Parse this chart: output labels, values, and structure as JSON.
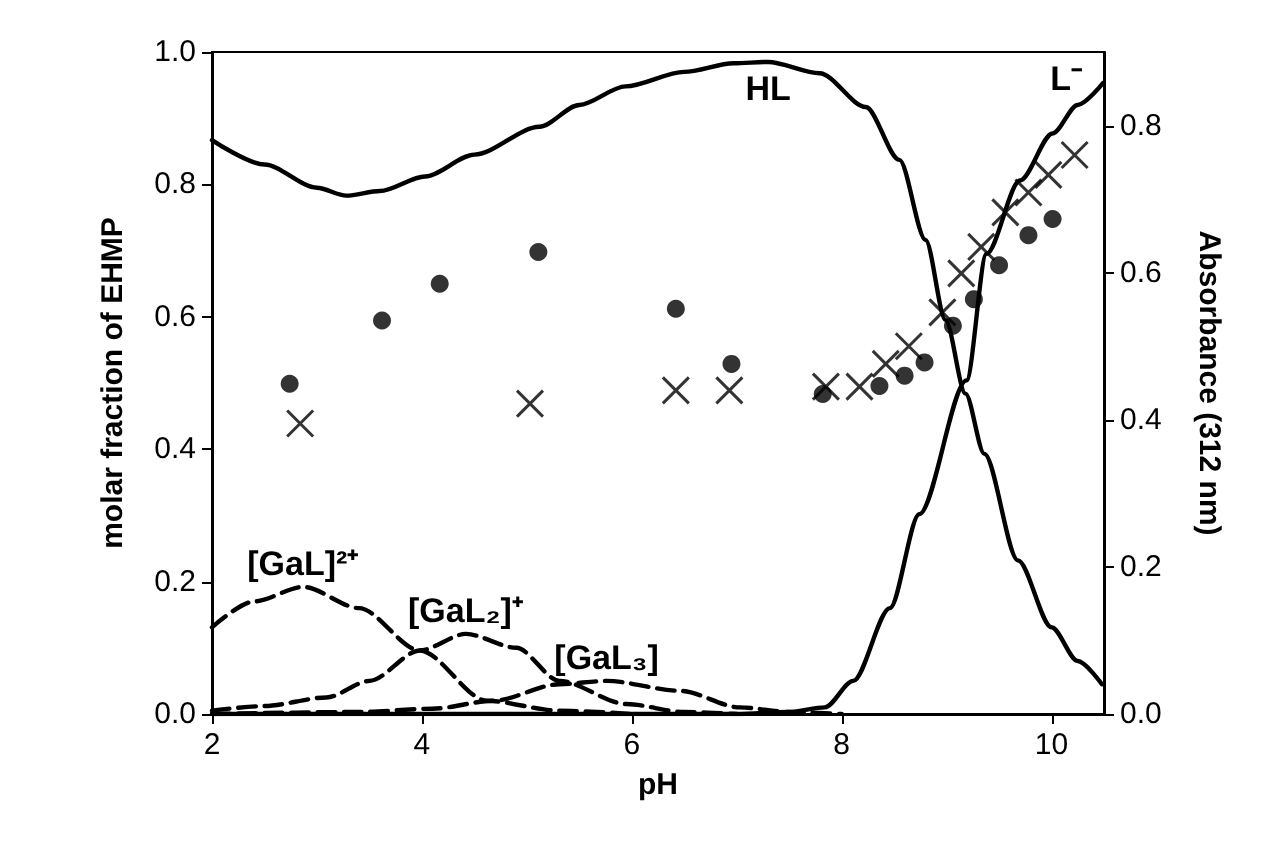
{
  "chart_data": {
    "type": "line",
    "xlabel": "pH",
    "ylabel": "molar fraction of EHMP",
    "y2label": "Absorbance (312 nm)",
    "xlim": [
      2,
      10.5
    ],
    "xticks": [
      2,
      4,
      6,
      8,
      10
    ],
    "ylim": [
      0,
      1
    ],
    "yticks": [
      {
        "value": 0,
        "label": "0.0"
      },
      {
        "value": 0.2,
        "label": "0.2"
      },
      {
        "value": 0.4,
        "label": "0.4"
      },
      {
        "value": 0.6,
        "label": "0.6"
      },
      {
        "value": 0.8,
        "label": "0.8"
      },
      {
        "value": 1,
        "label": "1.0"
      }
    ],
    "y2lim": [
      0,
      0.9
    ],
    "y2ticks": [
      {
        "value": 0,
        "label": "0.0"
      },
      {
        "value": 0.2,
        "label": "0.2"
      },
      {
        "value": 0.4,
        "label": "0.4"
      },
      {
        "value": 0.6,
        "label": "0.6"
      },
      {
        "value": 0.8,
        "label": "0.8"
      }
    ],
    "grid": false,
    "legend": false,
    "series": [
      {
        "name": "HL",
        "color": "#000000",
        "line_style": "solid",
        "marker": "none",
        "x": [
          2,
          2.5,
          3,
          3.28,
          3.6,
          4.03,
          4.5,
          5.12,
          5.5,
          5.94,
          6.5,
          6.97,
          7.3,
          7.79,
          8.23,
          8.55,
          8.8,
          8.99,
          9.18,
          9.36,
          9.68,
          10,
          10.25,
          10.48
        ],
        "values": [
          0.867,
          0.83,
          0.795,
          0.783,
          0.79,
          0.812,
          0.845,
          0.887,
          0.92,
          0.948,
          0.97,
          0.983,
          0.985,
          0.968,
          0.917,
          0.837,
          0.716,
          0.595,
          0.484,
          0.393,
          0.232,
          0.131,
          0.08,
          0.045
        ]
      },
      {
        "name": "L⁻",
        "color": "#000000",
        "line_style": "solid",
        "marker": "none",
        "x": [
          2,
          7,
          7.5,
          7.84,
          8.11,
          8.46,
          8.74,
          9.19,
          9.38,
          9.7,
          10.01,
          10.25,
          10.49
        ],
        "values": [
          0,
          0,
          0.003,
          0.01,
          0.05,
          0.16,
          0.302,
          0.504,
          0.695,
          0.806,
          0.877,
          0.92,
          0.953
        ]
      },
      {
        "name": "[GaL]²⁺",
        "color": "#000000",
        "line_style": "dashed",
        "marker": "none",
        "x": [
          2,
          2.4,
          2.87,
          3.4,
          3.98,
          4.62,
          5.31,
          6
        ],
        "values": [
          0.131,
          0.17,
          0.192,
          0.16,
          0.096,
          0.02,
          0.005,
          0
        ]
      },
      {
        "name": "[GaL₂]⁺",
        "color": "#000000",
        "line_style": "dashed",
        "marker": "none",
        "x": [
          2,
          2.5,
          3.09,
          3.5,
          3.98,
          4.42,
          4.9,
          5.31,
          5.95,
          6.5,
          7
        ],
        "values": [
          0.005,
          0.012,
          0.025,
          0.05,
          0.096,
          0.121,
          0.1,
          0.05,
          0.015,
          0.003,
          0
        ]
      },
      {
        "name": "[GaL₃]",
        "color": "#000000",
        "line_style": "dashed",
        "marker": "none",
        "x": [
          2,
          3.4,
          4.1,
          4.68,
          5.31,
          5.76,
          6.46,
          7.03,
          7.5,
          8
        ],
        "values": [
          0,
          0.003,
          0.008,
          0.02,
          0.045,
          0.05,
          0.035,
          0.01,
          0.003,
          0
        ]
      },
      {
        "type": "scatter",
        "axis": "y2",
        "color": "#000000",
        "marker": "circle",
        "x": [
          2.74,
          3.62,
          4.17,
          5.11,
          6.42,
          6.95,
          7.82,
          8.36,
          8.6,
          8.79,
          9.06,
          9.26,
          9.5,
          9.78,
          10.01
        ],
        "values": [
          0.449,
          0.535,
          0.585,
          0.628,
          0.551,
          0.476,
          0.435,
          0.446,
          0.46,
          0.478,
          0.528,
          0.564,
          0.61,
          0.651,
          0.673
        ]
      },
      {
        "type": "scatter",
        "axis": "y2",
        "color": "#000000",
        "marker": "cross",
        "x": [
          2.84,
          5.03,
          6.42,
          6.93,
          7.85,
          8.17,
          8.42,
          8.64,
          8.96,
          9.14,
          9.33,
          9.56,
          9.78,
          9.97,
          10.22
        ],
        "values": [
          0.395,
          0.422,
          0.44,
          0.44,
          0.445,
          0.445,
          0.476,
          0.5,
          0.546,
          0.599,
          0.635,
          0.682,
          0.709,
          0.733,
          0.76
        ]
      }
    ]
  }
}
